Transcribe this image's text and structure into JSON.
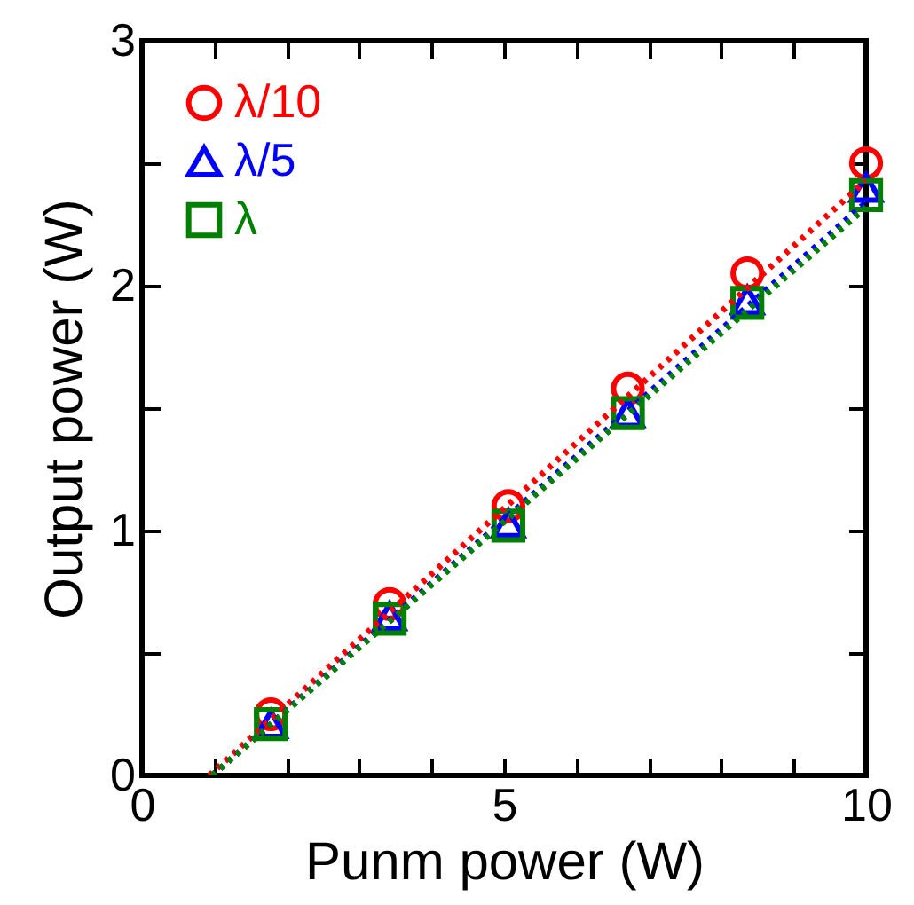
{
  "chart_data": {
    "type": "scatter",
    "xlabel": "Punm power (W)",
    "ylabel": "Output power (W)",
    "x": [
      1.78,
      3.42,
      5.06,
      6.71,
      8.36,
      10
    ],
    "series": [
      {
        "name": "λ/10",
        "color": "#ff0000",
        "marker": "circle",
        "values": [
          0.25,
          0.7,
          1.1,
          1.58,
          2.05,
          2.5
        ]
      },
      {
        "name": "λ/5",
        "color": "#0000ff",
        "marker": "triangle",
        "values": [
          0.21,
          0.65,
          1.03,
          1.48,
          1.94,
          2.4
        ]
      },
      {
        "name": "λ",
        "color": "#008000",
        "marker": "square",
        "values": [
          0.21,
          0.64,
          1.02,
          1.48,
          1.93,
          2.37
        ]
      },
      {
        "type": "line",
        "color": "#ff0000",
        "line_style": "dotted",
        "x": [
          0.93,
          10
        ],
        "values": [
          0,
          2.43
        ]
      },
      {
        "type": "line",
        "color": "#0000ff",
        "line_style": "dotted",
        "x": [
          0.97,
          10
        ],
        "values": [
          0,
          2.34
        ]
      },
      {
        "type": "line",
        "color": "#008000",
        "line_style": "dotted",
        "x": [
          0.97,
          10
        ],
        "values": [
          0,
          2.32
        ]
      }
    ],
    "xlim": [
      0,
      10
    ],
    "ylim": [
      0,
      3
    ],
    "xticks": [
      0,
      {
        "value": 1,
        "label": null
      },
      {
        "value": 2,
        "label": null
      },
      {
        "value": 3,
        "label": null
      },
      {
        "value": 4,
        "label": null
      },
      5,
      {
        "value": 6,
        "label": null
      },
      {
        "value": 7,
        "label": null
      },
      {
        "value": 8,
        "label": null
      },
      {
        "value": 9,
        "label": null
      },
      10
    ],
    "yticks": [
      0,
      {
        "value": 0.5,
        "label": null
      },
      1,
      {
        "value": 1.5,
        "label": null
      },
      2,
      {
        "value": 2.5,
        "label": null
      },
      3
    ],
    "legend": "top left",
    "grid": false
  }
}
